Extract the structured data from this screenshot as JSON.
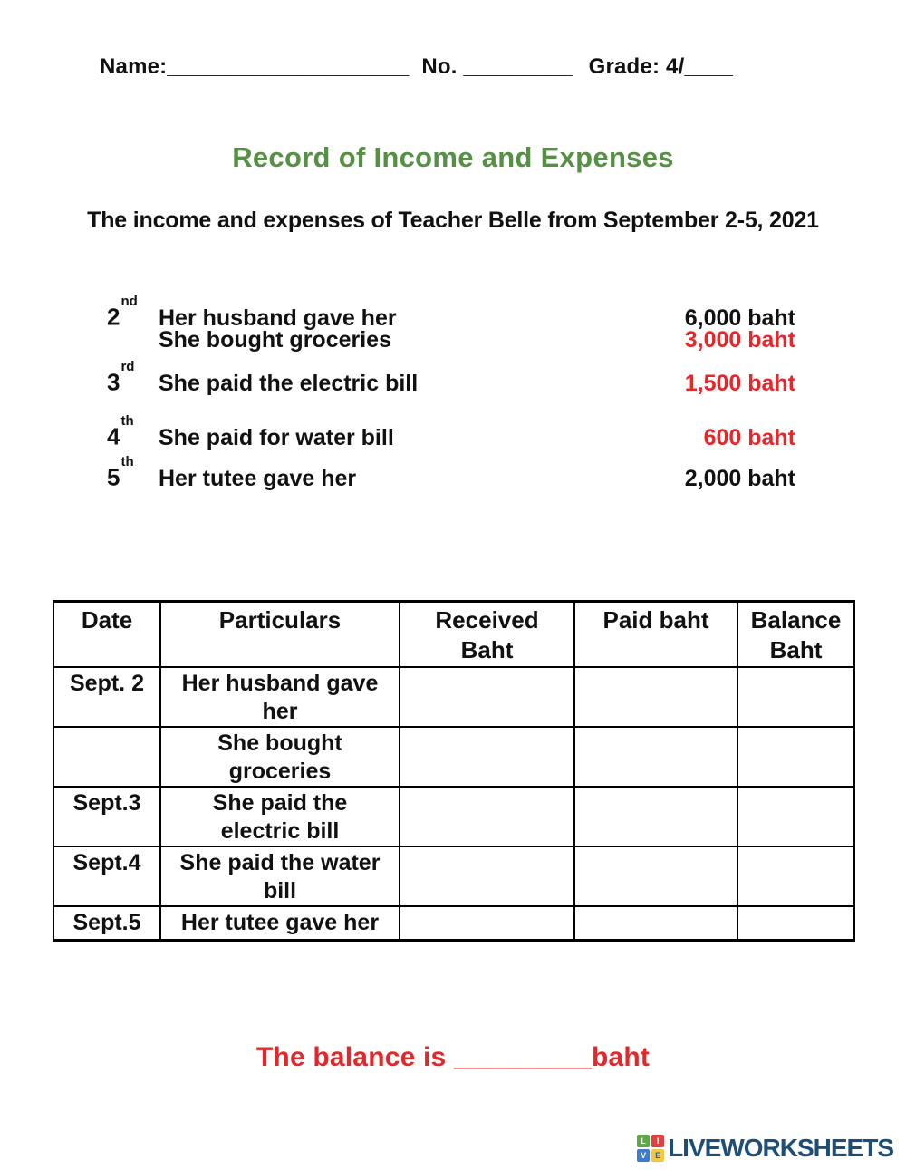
{
  "colors": {
    "title_green": "#569044",
    "accent_red": "#e3282c",
    "logo_blue": "#1d4e79",
    "logo_tile_green": "#5fa848",
    "logo_tile_red": "#e04040",
    "logo_tile_blue": "#3d7cc9",
    "logo_tile_yellow": "#f3c840"
  },
  "header": {
    "name_label": "Name:",
    "name_blank": "____________________",
    "no_label": "No.",
    "no_blank": "_________",
    "grade_label": "Grade: 4/",
    "grade_blank": "____"
  },
  "title": "Record of Income and Expenses",
  "subtitle": "The income and expenses of Teacher Belle from September 2-5, 2021",
  "entries": [
    {
      "day": "2",
      "ordinal": "nd",
      "description": "Her husband gave her",
      "amount": "6,000 baht",
      "amount_color": "black"
    },
    {
      "day": "",
      "ordinal": "",
      "description": "She bought groceries",
      "amount": "3,000 baht",
      "amount_color": "red"
    },
    {
      "day": "3",
      "ordinal": "rd",
      "description": "She paid the electric bill",
      "amount": "1,500 baht",
      "amount_color": "red"
    },
    {
      "day": "4",
      "ordinal": "th",
      "description": "She paid for water bill",
      "amount": "600 baht",
      "amount_color": "red"
    },
    {
      "day": "5",
      "ordinal": "th",
      "description": "Her tutee gave her",
      "amount": "2,000 baht",
      "amount_color": "black"
    }
  ],
  "table": {
    "headers": [
      "Date",
      "Particulars",
      "Received\nBaht",
      "Paid baht",
      "Balance\nBaht"
    ],
    "rows": [
      {
        "date": "Sept. 2",
        "particulars": "Her husband gave\nher",
        "received": "",
        "paid": "",
        "balance": ""
      },
      {
        "date": "",
        "particulars": "She bought\ngroceries",
        "received": "",
        "paid": "",
        "balance": ""
      },
      {
        "date": "Sept.3",
        "particulars": "She paid the\nelectric bill",
        "received": "",
        "paid": "",
        "balance": ""
      },
      {
        "date": "Sept.4",
        "particulars": "She paid the water\nbill",
        "received": "",
        "paid": "",
        "balance": ""
      },
      {
        "date": "Sept.5",
        "particulars": "Her tutee gave her",
        "received": "",
        "paid": "",
        "balance": ""
      }
    ]
  },
  "balance": {
    "prefix": "The balance is ",
    "blank": "_________",
    "suffix": "baht"
  },
  "footer": {
    "logo_tiles": [
      {
        "letter": "L"
      },
      {
        "letter": "I"
      },
      {
        "letter": "V"
      },
      {
        "letter": "E"
      }
    ],
    "logo_text": "LIVEWORKSHEETS"
  }
}
